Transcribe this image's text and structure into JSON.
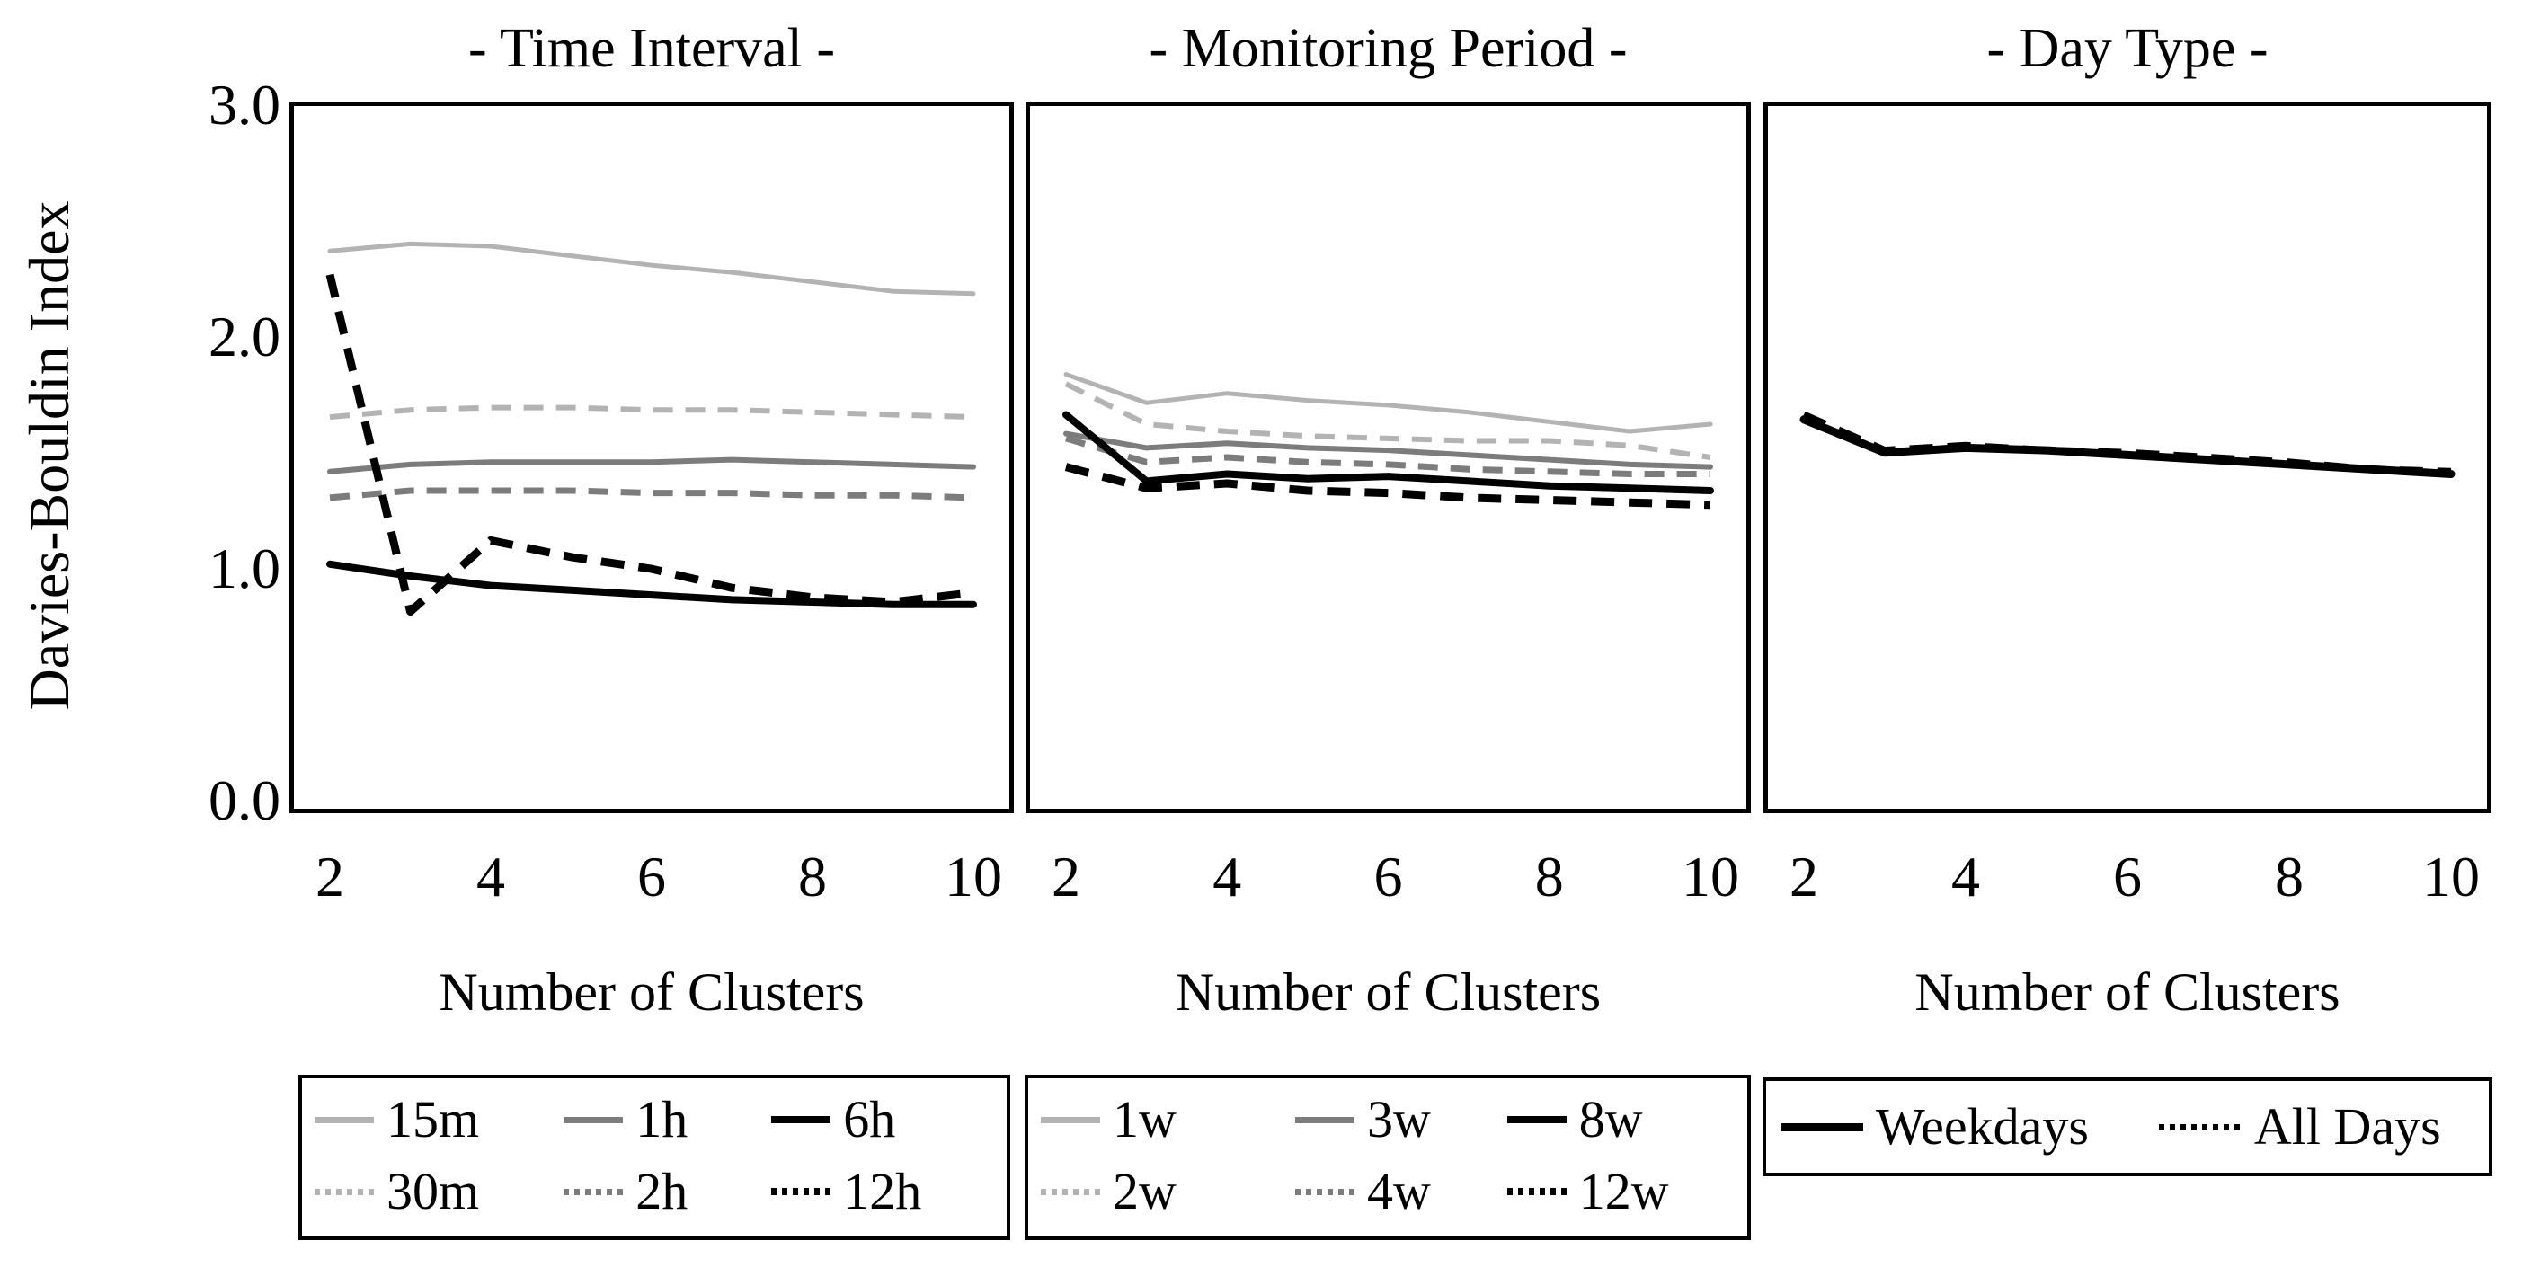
{
  "figure": {
    "y_axis_label": "Davies-Bouldin Index",
    "x_axis_label": "Number of Clusters",
    "y_ticks": [
      "3.0",
      "2.0",
      "1.0",
      "0.0"
    ],
    "x_ticks": [
      "2",
      "4",
      "6",
      "8",
      "10"
    ]
  },
  "colors": {
    "light_gray": "#b3b3b3",
    "mid_gray": "#7c7c7c",
    "black": "#000000"
  },
  "chart_data": [
    {
      "type": "line",
      "title": "- Time Interval -",
      "xlabel": "Number of Clusters",
      "ylabel": "Davies-Bouldin Index",
      "x": [
        2,
        3,
        4,
        5,
        6,
        7,
        8,
        9,
        10
      ],
      "ylim": [
        0,
        3
      ],
      "grid": false,
      "legend_position": "below",
      "series": [
        {
          "name": "15m",
          "color": "#b3b3b3",
          "dash": "solid",
          "weight": 5,
          "values": [
            2.37,
            2.4,
            2.39,
            2.35,
            2.31,
            2.28,
            2.24,
            2.2,
            2.19
          ]
        },
        {
          "name": "30m",
          "color": "#b3b3b3",
          "dash": "dash",
          "weight": 6,
          "values": [
            1.67,
            1.7,
            1.71,
            1.71,
            1.7,
            1.7,
            1.69,
            1.68,
            1.67
          ]
        },
        {
          "name": "1h",
          "color": "#7c7c7c",
          "dash": "solid",
          "weight": 6,
          "values": [
            1.44,
            1.47,
            1.48,
            1.48,
            1.48,
            1.49,
            1.48,
            1.47,
            1.46
          ]
        },
        {
          "name": "2h",
          "color": "#7c7c7c",
          "dash": "dash",
          "weight": 7,
          "values": [
            1.33,
            1.36,
            1.36,
            1.36,
            1.35,
            1.35,
            1.34,
            1.34,
            1.33
          ]
        },
        {
          "name": "6h",
          "color": "#000000",
          "dash": "solid",
          "weight": 8,
          "values": [
            1.05,
            1.0,
            0.96,
            0.94,
            0.92,
            0.9,
            0.89,
            0.88,
            0.88
          ]
        },
        {
          "name": "12h",
          "color": "#000000",
          "dash": "dash",
          "weight": 9,
          "values": [
            2.27,
            0.85,
            1.15,
            1.08,
            1.03,
            0.95,
            0.91,
            0.89,
            0.93
          ]
        }
      ],
      "legend_rows": [
        [
          "15m",
          "1h",
          "6h"
        ],
        [
          "30m",
          "2h",
          "12h"
        ]
      ]
    },
    {
      "type": "line",
      "title": "- Monitoring Period -",
      "xlabel": "Number of Clusters",
      "ylabel": "Davies-Bouldin Index",
      "x": [
        2,
        3,
        4,
        5,
        6,
        7,
        8,
        9,
        10
      ],
      "ylim": [
        0,
        3
      ],
      "grid": false,
      "legend_position": "below",
      "series": [
        {
          "name": "1w",
          "color": "#b3b3b3",
          "dash": "solid",
          "weight": 5,
          "values": [
            1.85,
            1.73,
            1.77,
            1.74,
            1.72,
            1.69,
            1.65,
            1.61,
            1.64
          ]
        },
        {
          "name": "2w",
          "color": "#b3b3b3",
          "dash": "dash",
          "weight": 6,
          "values": [
            1.81,
            1.64,
            1.61,
            1.59,
            1.58,
            1.57,
            1.57,
            1.55,
            1.5
          ]
        },
        {
          "name": "3w",
          "color": "#7c7c7c",
          "dash": "solid",
          "weight": 6,
          "values": [
            1.6,
            1.54,
            1.56,
            1.54,
            1.53,
            1.51,
            1.49,
            1.47,
            1.46
          ]
        },
        {
          "name": "4w",
          "color": "#7c7c7c",
          "dash": "dash",
          "weight": 7,
          "values": [
            1.58,
            1.48,
            1.5,
            1.48,
            1.47,
            1.45,
            1.44,
            1.43,
            1.43
          ]
        },
        {
          "name": "8w",
          "color": "#000000",
          "dash": "solid",
          "weight": 8,
          "values": [
            1.68,
            1.4,
            1.43,
            1.41,
            1.42,
            1.4,
            1.38,
            1.37,
            1.36
          ]
        },
        {
          "name": "12w",
          "color": "#000000",
          "dash": "dash",
          "weight": 9,
          "values": [
            1.46,
            1.37,
            1.39,
            1.36,
            1.35,
            1.33,
            1.32,
            1.31,
            1.3
          ]
        }
      ],
      "legend_rows": [
        [
          "1w",
          "3w",
          "8w"
        ],
        [
          "2w",
          "4w",
          "12w"
        ]
      ]
    },
    {
      "type": "line",
      "title": "- Day Type -",
      "xlabel": "Number of Clusters",
      "ylabel": "Davies-Bouldin Index",
      "x": [
        2,
        3,
        4,
        5,
        6,
        7,
        8,
        9,
        10
      ],
      "ylim": [
        0,
        3
      ],
      "grid": false,
      "legend_position": "below",
      "series": [
        {
          "name": "Weekdays",
          "color": "#000000",
          "dash": "solid",
          "weight": 9,
          "values": [
            1.66,
            1.52,
            1.54,
            1.53,
            1.51,
            1.49,
            1.47,
            1.45,
            1.43
          ]
        },
        {
          "name": "All Days",
          "color": "#000000",
          "dash": "dash",
          "weight": 8,
          "values": [
            1.68,
            1.53,
            1.55,
            1.53,
            1.52,
            1.5,
            1.48,
            1.45,
            1.44
          ]
        }
      ],
      "legend_rows": [
        [
          "Weekdays",
          "All Days"
        ]
      ]
    }
  ]
}
